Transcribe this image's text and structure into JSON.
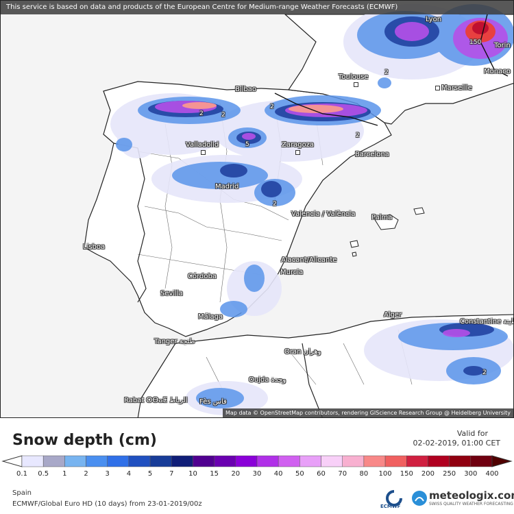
{
  "banner": "This service is based on data and products of the European Centre for Medium-range Weather Forecasts (ECMWF)",
  "attribution": "Map data © OpenStreetMap contributors, rendering GIScience Research Group @ Heidelberg University",
  "cities": [
    {
      "key": "lyon",
      "name": "Lyon"
    },
    {
      "key": "torino",
      "name": "Torin"
    },
    {
      "key": "toulouse",
      "name": "Toulouse"
    },
    {
      "key": "monaco",
      "name": "Monaco"
    },
    {
      "key": "marseille",
      "name": "Marseille"
    },
    {
      "key": "bilbao",
      "name": "Bilbao"
    },
    {
      "key": "valladolid",
      "name": "Valladolid"
    },
    {
      "key": "zaragoza",
      "name": "Zaragoza"
    },
    {
      "key": "barcelona",
      "name": "Barcelona"
    },
    {
      "key": "madrid",
      "name": "Madrid"
    },
    {
      "key": "valencia",
      "name": "Valencia / València"
    },
    {
      "key": "palma",
      "name": "Palma"
    },
    {
      "key": "lisboa",
      "name": "Lisboa"
    },
    {
      "key": "alacant",
      "name": "Alacant/Alicante"
    },
    {
      "key": "murcia",
      "name": "Murcia"
    },
    {
      "key": "cordoba",
      "name": "Córdoba"
    },
    {
      "key": "sevilla",
      "name": "Sevilla"
    },
    {
      "key": "malaga",
      "name": "Málaga"
    },
    {
      "key": "alger",
      "name": "Alger"
    },
    {
      "key": "constantine",
      "name": "Constantine قسنطينة"
    },
    {
      "key": "tanger",
      "name": "Tanger طنجة"
    },
    {
      "key": "oran",
      "name": "Oran وهران"
    },
    {
      "key": "oujda",
      "name": "Oujda وجدة"
    },
    {
      "key": "rabat",
      "name": "Rabat ⵔⴱⴰⵟ الرباط"
    },
    {
      "key": "fes",
      "name": "Fès فاس"
    }
  ],
  "contour_labels": [
    "2",
    "2",
    "5",
    "2",
    "2",
    "2",
    "2",
    "2",
    "150"
  ],
  "legend": {
    "title": "Snow depth (cm)",
    "valid_label": "Valid for",
    "valid_date": "02-02-2019, 01:00 CET",
    "region": "Spain",
    "model": "ECMWF/Global Euro HD (10 days) from 23-01-2019/00z",
    "scale_colors": [
      "#e8e8ff",
      "#a8a8c8",
      "#78b4f0",
      "#4a8ff0",
      "#3070e8",
      "#2050c0",
      "#183c98",
      "#101e78",
      "#500090",
      "#6a00b0",
      "#8a00d8",
      "#b030e8",
      "#d060f0",
      "#e8a0f8",
      "#f8d0f8",
      "#f8b0d0",
      "#f88888",
      "#f06060",
      "#d02040",
      "#b00020",
      "#900010",
      "#700010",
      "#500000"
    ],
    "scale_values": [
      "0.1",
      "0.5",
      "1",
      "2",
      "3",
      "4",
      "5",
      "7",
      "10",
      "15",
      "20",
      "30",
      "40",
      "50",
      "60",
      "70",
      "80",
      "100",
      "150",
      "200",
      "250",
      "300",
      "400"
    ]
  },
  "logos": {
    "ecmwf": "ECMWF",
    "meteologix": "meteologix.com",
    "meteologix_tagline": "SWISS QUALITY WEATHER FORECASTING"
  }
}
